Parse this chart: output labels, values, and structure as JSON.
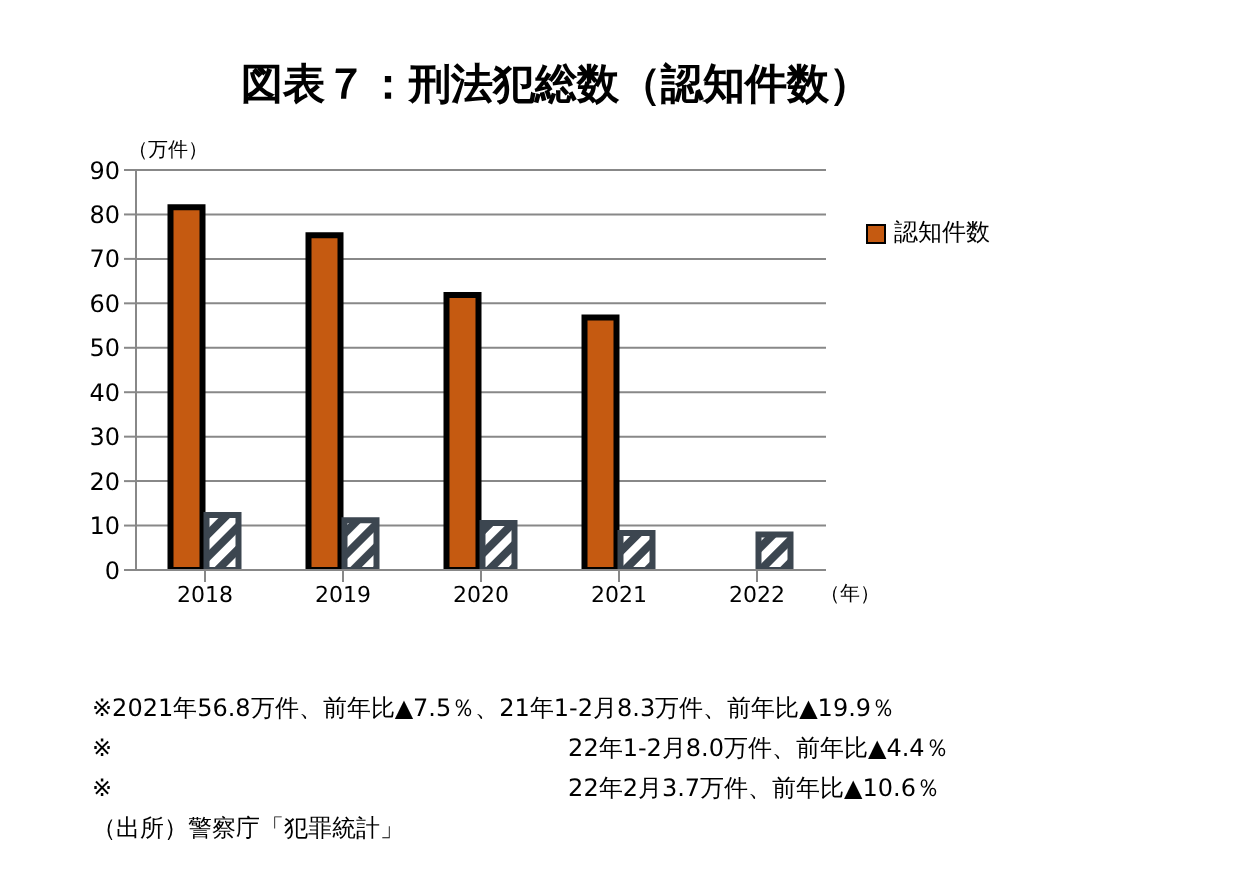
{
  "chart_data": {
    "type": "bar",
    "title": "図表７：刑法犯総数（認知件数）",
    "ylabel": "（万件）",
    "xlabel": "（年）",
    "categories": [
      "2018",
      "2019",
      "2020",
      "2021",
      "2022"
    ],
    "series": [
      {
        "name": "認知件数",
        "color": "#c55a11",
        "values": [
          81.6,
          75.3,
          61.9,
          56.8,
          null
        ]
      },
      {
        "color": "#3c4650",
        "values": [
          12.4,
          11.2,
          10.6,
          8.3,
          8.0
        ]
      }
    ],
    "ylim": [
      0,
      90
    ],
    "yticks": [
      0,
      10,
      20,
      30,
      40,
      50,
      60,
      70,
      80,
      90
    ],
    "grid": "y",
    "legend": "right",
    "annotations": [
      "※2021年56.8万件、前年比▲7.5％、21年1-2月8.3万件、前年比▲19.9％",
      "※　　　　　　　　　　　　　　　　　　　22年1-2月8.0万件、前年比▲4.4％",
      "※　　　　　　　　　　　　　　　　　　　22年2月3.7万件、前年比▲10.6％",
      "（出所）警察庁「犯罪統計」"
    ]
  }
}
